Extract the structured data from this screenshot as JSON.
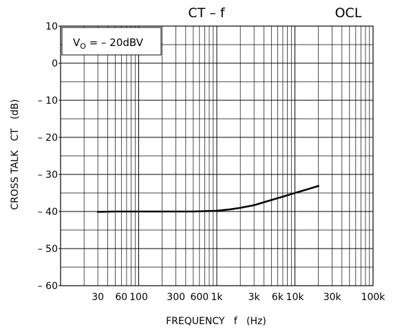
{
  "chart_data": {
    "type": "line",
    "title": "CT – f",
    "corner_label": "OCL",
    "annotation": {
      "prefix": "V",
      "subscript": "O",
      "suffix": " = – 20dBV"
    },
    "xlabel": "FREQUENCY   f   (Hz)",
    "ylabel": "CROSS TALK   CT   (dB)",
    "x_scale": "log",
    "xlim": [
      10,
      100000
    ],
    "ylim": [
      -60,
      10
    ],
    "grid": true,
    "x_ticks": [
      {
        "value": 30,
        "label": "30"
      },
      {
        "value": 60,
        "label": "60"
      },
      {
        "value": 100,
        "label": "100"
      },
      {
        "value": 300,
        "label": "300"
      },
      {
        "value": 600,
        "label": "600"
      },
      {
        "value": 1000,
        "label": "1k"
      },
      {
        "value": 3000,
        "label": "3k"
      },
      {
        "value": 6000,
        "label": "6k"
      },
      {
        "value": 10000,
        "label": "10k"
      },
      {
        "value": 30000,
        "label": "30k"
      },
      {
        "value": 100000,
        "label": "100k"
      }
    ],
    "y_ticks": [
      {
        "value": 10,
        "label": "10"
      },
      {
        "value": 0,
        "label": "0"
      },
      {
        "value": -10,
        "label": "– 10"
      },
      {
        "value": -20,
        "label": "– 20"
      },
      {
        "value": -30,
        "label": "– 30"
      },
      {
        "value": -40,
        "label": "– 40"
      },
      {
        "value": -50,
        "label": "– 50"
      },
      {
        "value": -60,
        "label": "– 60"
      }
    ],
    "series": [
      {
        "color": "#000000",
        "x": [
          30,
          50,
          100,
          200,
          500,
          1000,
          1500,
          2000,
          3000,
          5000,
          7000,
          10000,
          15000,
          20000
        ],
        "y": [
          -40.1,
          -40.0,
          -40.0,
          -40.0,
          -40.0,
          -39.8,
          -39.4,
          -39.0,
          -38.3,
          -36.9,
          -36.0,
          -35.0,
          -33.9,
          -33.1
        ]
      }
    ]
  }
}
